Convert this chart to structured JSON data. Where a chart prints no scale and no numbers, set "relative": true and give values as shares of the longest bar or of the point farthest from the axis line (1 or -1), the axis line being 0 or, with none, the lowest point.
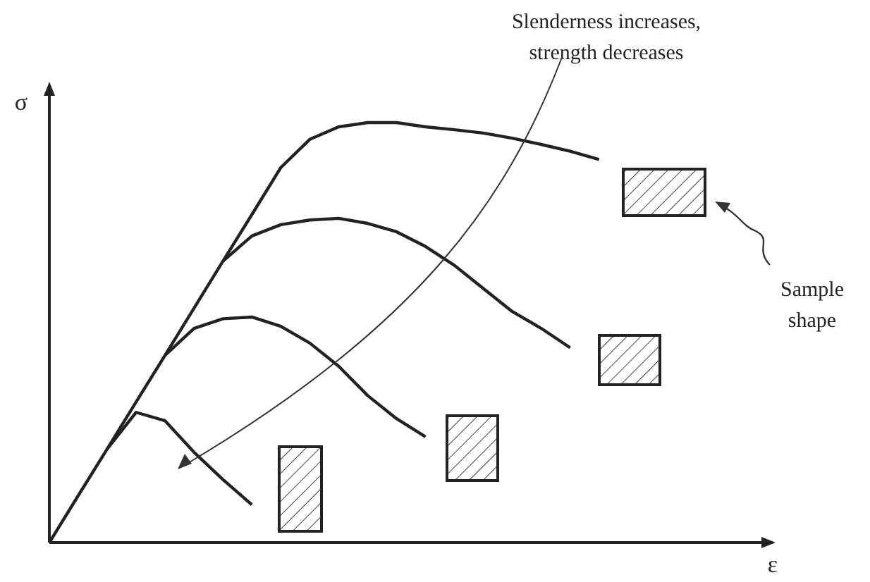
{
  "chart_data": {
    "type": "line",
    "relative": true,
    "xlabel": "ε",
    "ylabel": "σ",
    "tick_labels": false,
    "annotations": [
      "Slenderness increases,\nstrength decreases",
      "Sample\nshape"
    ],
    "categories": [
      null,
      null,
      null,
      null,
      null,
      null,
      null,
      null,
      null,
      null,
      null,
      null,
      null,
      null,
      null,
      null,
      null,
      null,
      null,
      null,
      null,
      null,
      null,
      null,
      null,
      null
    ],
    "series": [
      {
        "color": "#222222",
        "values": [
          0,
          0.112,
          0.223,
          0.335,
          0.446,
          0.558,
          0.67,
          0.781,
          0.893,
          0.96,
          0.99,
          1.0,
          1.0,
          0.99,
          0.983,
          0.975,
          0.963,
          0.948,
          0.932,
          0.912,
          null,
          null,
          null,
          null,
          null,
          null
        ]
      },
      {
        "color": "#222222",
        "values": [
          null,
          null,
          null,
          null,
          null,
          null,
          0.67,
          0.73,
          0.757,
          0.768,
          0.772,
          0.76,
          0.74,
          0.705,
          0.66,
          0.605,
          0.55,
          0.51,
          0.464,
          null,
          null,
          null,
          null,
          null,
          null,
          null
        ]
      },
      {
        "color": "#222222",
        "values": [
          null,
          null,
          null,
          null,
          0.446,
          0.51,
          0.533,
          0.537,
          0.515,
          0.475,
          0.42,
          0.35,
          0.295,
          0.252,
          null,
          null,
          null,
          null,
          null,
          null,
          null,
          null,
          null,
          null,
          null,
          null
        ]
      },
      {
        "color": "#222222",
        "values": [
          null,
          null,
          0.223,
          0.31,
          0.29,
          0.215,
          0.15,
          0.09,
          null,
          null,
          null,
          null,
          null,
          null,
          null,
          null,
          null,
          null,
          null,
          null,
          null,
          null,
          null,
          null,
          null,
          null
        ]
      }
    ]
  }
}
